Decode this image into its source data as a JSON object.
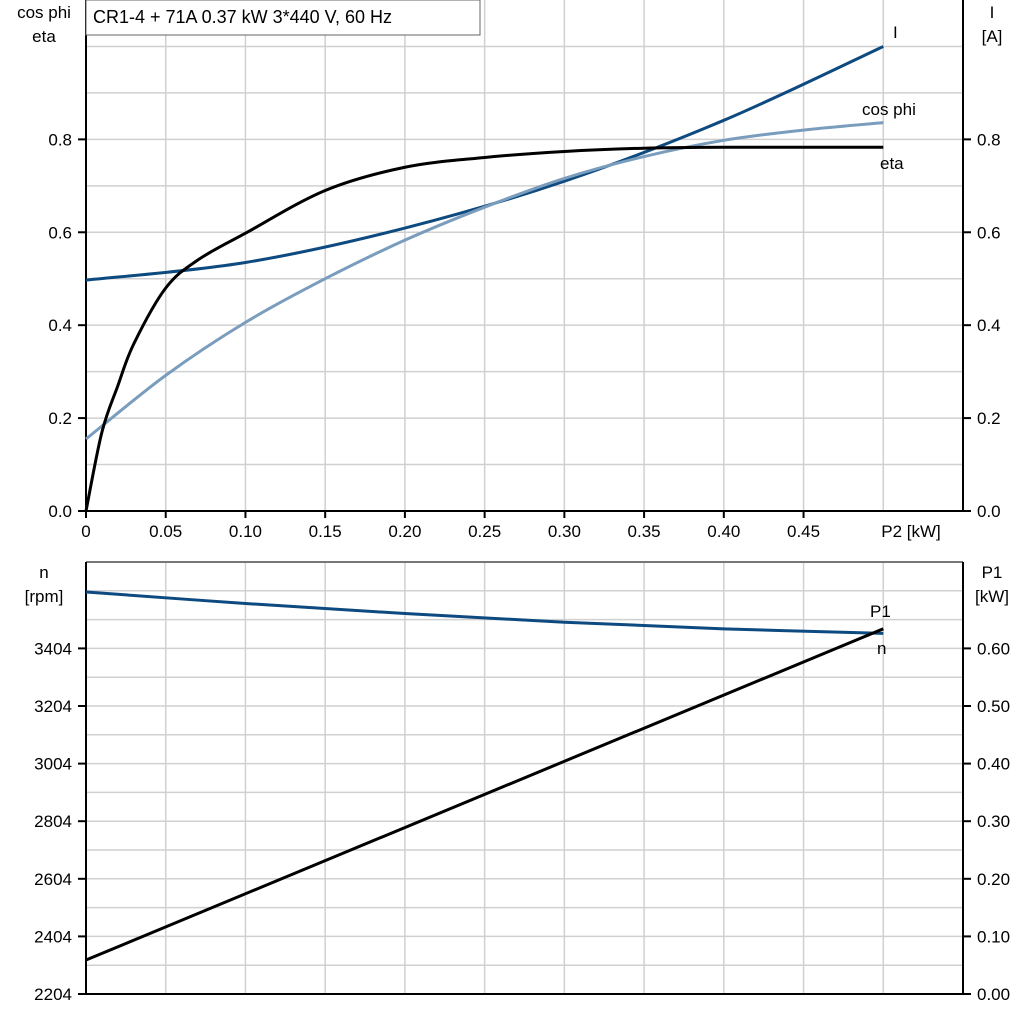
{
  "title": "CR1-4 + 71A   0.37 kW   3*440 V, 60 Hz",
  "chart_data": [
    {
      "type": "line",
      "xlabel": "P2 [kW]",
      "ylabel_left": [
        "cos phi",
        "eta"
      ],
      "ylabel_right": [
        "I",
        "[A]"
      ],
      "xlim": [
        0,
        0.55
      ],
      "ylim_left": [
        0,
        1.1
      ],
      "ylim_right": [
        0,
        1.1
      ],
      "x_ticks": [
        "0",
        "0.05",
        "0.10",
        "0.15",
        "0.20",
        "0.25",
        "0.30",
        "0.35",
        "0.40",
        "0.45"
      ],
      "y_ticks_left": [
        "0.0",
        "0.2",
        "0.4",
        "0.6",
        "0.8"
      ],
      "y_ticks_right": [
        "0.0",
        "0.2",
        "0.4",
        "0.6",
        "0.8"
      ],
      "grid": true,
      "series": [
        {
          "name": "I",
          "axis": "right",
          "color": "#0d4a80",
          "x": [
            0,
            0.1,
            0.2,
            0.3,
            0.4,
            0.5
          ],
          "y": [
            0.497,
            0.535,
            0.609,
            0.71,
            0.841,
            1.0
          ]
        },
        {
          "name": "cos phi",
          "axis": "left",
          "color": "#7a9cbd",
          "x": [
            0,
            0.05,
            0.1,
            0.15,
            0.2,
            0.25,
            0.3,
            0.35,
            0.4,
            0.45,
            0.5
          ],
          "y": [
            0.155,
            0.292,
            0.406,
            0.5,
            0.583,
            0.654,
            0.716,
            0.763,
            0.798,
            0.82,
            0.836
          ]
        },
        {
          "name": "eta",
          "axis": "left",
          "color": "#000000",
          "x": [
            0,
            0.01,
            0.02,
            0.03,
            0.05,
            0.07,
            0.1,
            0.15,
            0.2,
            0.25,
            0.3,
            0.35,
            0.4,
            0.5
          ],
          "y": [
            0,
            0.17,
            0.27,
            0.36,
            0.48,
            0.54,
            0.598,
            0.69,
            0.74,
            0.761,
            0.774,
            0.781,
            0.783,
            0.783
          ]
        }
      ]
    },
    {
      "type": "line",
      "ylabel_left": [
        "n",
        "[rpm]"
      ],
      "ylabel_right": [
        "P1",
        "[kW]"
      ],
      "xlim": [
        0,
        0.55
      ],
      "ylim_left": [
        2204,
        3704
      ],
      "ylim_right": [
        0,
        0.75
      ],
      "y_ticks_left": [
        "2204",
        "2404",
        "2604",
        "2804",
        "3004",
        "3204",
        "3404"
      ],
      "y_ticks_right": [
        "0.00",
        "0.10",
        "0.20",
        "0.30",
        "0.40",
        "0.50",
        "0.60"
      ],
      "grid": true,
      "series": [
        {
          "name": "n",
          "axis": "left",
          "color": "#0d4a80",
          "x": [
            0,
            0.1,
            0.2,
            0.3,
            0.4,
            0.5
          ],
          "y": [
            3600,
            3560,
            3525,
            3495,
            3472,
            3456
          ]
        },
        {
          "name": "P1",
          "axis": "right",
          "color": "#000000",
          "x": [
            0,
            0.5
          ],
          "y": [
            0.059,
            0.634
          ]
        }
      ]
    }
  ]
}
